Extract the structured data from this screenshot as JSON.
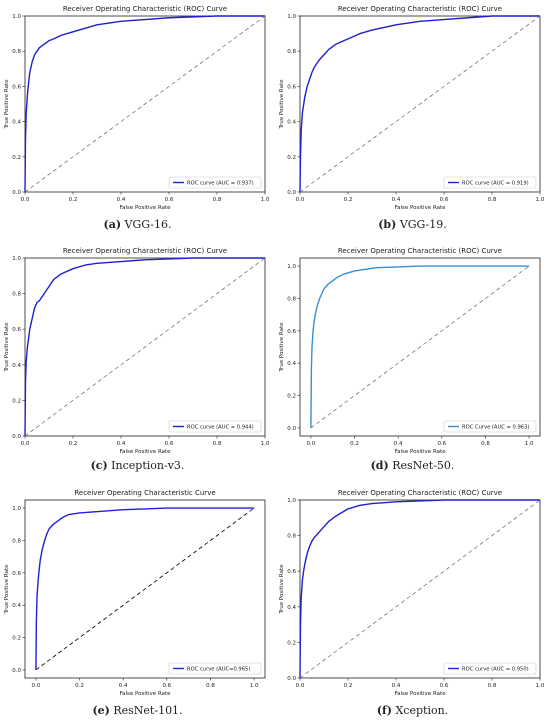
{
  "chart_data": [
    {
      "type": "line",
      "title": "Receiver Operating Characteristic (ROC) Curve",
      "xlabel": "False Positive Rate",
      "ylabel": "True Positive Rate",
      "xlim": [
        0,
        1
      ],
      "ylim": [
        0,
        1
      ],
      "xticks": [
        "0.0",
        "0.2",
        "0.4",
        "0.6",
        "0.8",
        "1.0"
      ],
      "yticks": [
        "0.0",
        "0.2",
        "0.4",
        "0.6",
        "0.8",
        "1.0"
      ],
      "legend_position": "lower-right",
      "color": "#1f1fcf",
      "caption_letter": "(a)",
      "caption_text": " VGG-16.",
      "series": [
        {
          "name": "ROC curve (AUC = 0.937)",
          "x": [
            0,
            0.002,
            0.005,
            0.01,
            0.015,
            0.02,
            0.03,
            0.04,
            0.05,
            0.06,
            0.08,
            0.1,
            0.12,
            0.15,
            0.2,
            0.25,
            0.3,
            0.4,
            0.5,
            0.6,
            0.7,
            0.8,
            0.9,
            1.0
          ],
          "y": [
            0,
            0.3,
            0.45,
            0.55,
            0.62,
            0.68,
            0.74,
            0.78,
            0.8,
            0.82,
            0.84,
            0.86,
            0.87,
            0.89,
            0.91,
            0.93,
            0.95,
            0.97,
            0.98,
            0.99,
            0.995,
            1.0,
            1.0,
            1.0
          ]
        },
        {
          "name": "",
          "style": "dashed",
          "x": [
            0,
            1
          ],
          "y": [
            0,
            1
          ]
        }
      ]
    },
    {
      "type": "line",
      "title": "Receiver Operating Characteristic (ROC) Curve",
      "xlabel": "False Positive Rate",
      "ylabel": "True Positive Rate",
      "xlim": [
        0,
        1
      ],
      "ylim": [
        0,
        1
      ],
      "xticks": [
        "0.0",
        "0.2",
        "0.4",
        "0.6",
        "0.8",
        "1.0"
      ],
      "yticks": [
        "0.0",
        "0.2",
        "0.4",
        "0.6",
        "0.8",
        "1.0"
      ],
      "legend_position": "lower-right",
      "color": "#1f1fcf",
      "caption_letter": "(b)",
      "caption_text": " VGG-19.",
      "series": [
        {
          "name": "ROC curve (AUC = 0.919)",
          "x": [
            0,
            0.002,
            0.005,
            0.01,
            0.02,
            0.03,
            0.04,
            0.05,
            0.06,
            0.08,
            0.1,
            0.12,
            0.15,
            0.2,
            0.25,
            0.3,
            0.4,
            0.5,
            0.6,
            0.7,
            0.8,
            0.9,
            1.0
          ],
          "y": [
            0,
            0.2,
            0.35,
            0.45,
            0.54,
            0.6,
            0.64,
            0.68,
            0.71,
            0.75,
            0.78,
            0.81,
            0.84,
            0.87,
            0.9,
            0.92,
            0.95,
            0.97,
            0.98,
            0.99,
            1.0,
            1.0,
            1.0
          ]
        },
        {
          "name": "",
          "style": "dashed",
          "x": [
            0,
            1
          ],
          "y": [
            0,
            1
          ]
        }
      ]
    },
    {
      "type": "line",
      "title": "Receiver Operating Characteristic (ROC) Curve",
      "xlabel": "False Positive Rate",
      "ylabel": "True Positive Rate",
      "xlim": [
        0,
        1
      ],
      "ylim": [
        0,
        1
      ],
      "xticks": [
        "0.0",
        "0.2",
        "0.4",
        "0.6",
        "0.8",
        "1.0"
      ],
      "yticks": [
        "0.0",
        "0.2",
        "0.4",
        "0.6",
        "0.8",
        "1.0"
      ],
      "legend_position": "lower-right",
      "color": "#1f1fcf",
      "caption_letter": "(c)",
      "caption_text": " Inception-v3.",
      "series": [
        {
          "name": "ROC curve (AUC = 0.944)",
          "x": [
            0,
            0.002,
            0.005,
            0.01,
            0.015,
            0.02,
            0.03,
            0.04,
            0.05,
            0.06,
            0.08,
            0.1,
            0.12,
            0.15,
            0.2,
            0.25,
            0.3,
            0.4,
            0.5,
            0.6,
            0.7,
            0.8,
            0.9,
            1.0
          ],
          "y": [
            0,
            0.3,
            0.42,
            0.5,
            0.55,
            0.6,
            0.66,
            0.72,
            0.75,
            0.76,
            0.8,
            0.84,
            0.88,
            0.91,
            0.94,
            0.96,
            0.97,
            0.98,
            0.99,
            0.995,
            1.0,
            1.0,
            1.0,
            1.0
          ]
        },
        {
          "name": "",
          "style": "dashed",
          "x": [
            0,
            1
          ],
          "y": [
            0,
            1
          ]
        }
      ]
    },
    {
      "type": "line",
      "title": "Receiver Operating Characteristic (ROC) Curve",
      "xlabel": "False Positive Rate",
      "ylabel": "True Positive Rate",
      "xlim": [
        -0.05,
        1.05
      ],
      "ylim": [
        -0.05,
        1.05
      ],
      "xticks": [
        "0.0",
        "0.2",
        "0.4",
        "0.6",
        "0.8",
        "1.0"
      ],
      "yticks": [
        "0.0",
        "0.2",
        "0.4",
        "0.6",
        "0.8",
        "1.0"
      ],
      "legend_position": "lower-right",
      "color": "#3a8fd0",
      "caption_letter": "(d)",
      "caption_text": " ResNet-50.",
      "series": [
        {
          "name": "ROC Curve (AUC = 0.963)",
          "x": [
            0,
            0.002,
            0.005,
            0.01,
            0.015,
            0.02,
            0.03,
            0.04,
            0.05,
            0.06,
            0.08,
            0.1,
            0.12,
            0.15,
            0.2,
            0.25,
            0.3,
            0.4,
            0.5,
            0.6,
            1.0
          ],
          "y": [
            0,
            0.35,
            0.5,
            0.6,
            0.66,
            0.7,
            0.76,
            0.8,
            0.83,
            0.86,
            0.89,
            0.91,
            0.93,
            0.95,
            0.97,
            0.98,
            0.99,
            0.995,
            1.0,
            1.0,
            1.0
          ]
        },
        {
          "name": "",
          "style": "dashed",
          "x": [
            0,
            1
          ],
          "y": [
            0,
            1
          ]
        }
      ]
    },
    {
      "type": "line",
      "title": "Receiver Operating Characteristic Curve",
      "xlabel": "False Positive Rate",
      "ylabel": "True Positive Rate",
      "xlim": [
        -0.05,
        1.05
      ],
      "ylim": [
        -0.05,
        1.05
      ],
      "xticks": [
        "0.0",
        "0.2",
        "0.4",
        "0.6",
        "0.8",
        "1.0"
      ],
      "yticks": [
        "0.0",
        "0.2",
        "0.4",
        "0.6",
        "0.8",
        "1.0"
      ],
      "legend_position": "lower-right",
      "color": "#2020e0",
      "caption_letter": "(e)",
      "caption_text": " ResNet-101.",
      "series": [
        {
          "name": "ROC curve (AUC=0.965)",
          "x": [
            0,
            0.002,
            0.005,
            0.01,
            0.015,
            0.02,
            0.03,
            0.04,
            0.05,
            0.06,
            0.08,
            0.1,
            0.12,
            0.15,
            0.2,
            0.3,
            0.4,
            0.5,
            0.6,
            0.8,
            1.0
          ],
          "y": [
            0,
            0.3,
            0.45,
            0.55,
            0.62,
            0.68,
            0.75,
            0.8,
            0.84,
            0.87,
            0.9,
            0.92,
            0.94,
            0.96,
            0.97,
            0.98,
            0.99,
            0.995,
            1.0,
            1.0,
            1.0
          ]
        },
        {
          "name": "",
          "style": "dashed",
          "x": [
            0,
            1
          ],
          "y": [
            0,
            1
          ]
        }
      ]
    },
    {
      "type": "line",
      "title": "Receiver Operating Characteristic (ROC) Curve",
      "xlabel": "False Positive Rate",
      "ylabel": "True Positive Rate",
      "xlim": [
        0,
        1
      ],
      "ylim": [
        0,
        1
      ],
      "xticks": [
        "0.0",
        "0.2",
        "0.4",
        "0.6",
        "0.8",
        "1.0"
      ],
      "yticks": [
        "0.0",
        "0.2",
        "0.4",
        "0.6",
        "0.8",
        "1.0"
      ],
      "legend_position": "lower-right",
      "color": "#1f1fcf",
      "caption_letter": "(f)",
      "caption_text": " Xception.",
      "series": [
        {
          "name": "ROC curve (AUC = 0.950)",
          "x": [
            0,
            0.002,
            0.005,
            0.01,
            0.015,
            0.02,
            0.03,
            0.04,
            0.05,
            0.06,
            0.08,
            0.1,
            0.12,
            0.15,
            0.2,
            0.25,
            0.3,
            0.4,
            0.5,
            0.6,
            0.7,
            0.8,
            1.0
          ],
          "y": [
            0,
            0.3,
            0.45,
            0.55,
            0.6,
            0.64,
            0.7,
            0.74,
            0.77,
            0.79,
            0.82,
            0.85,
            0.88,
            0.91,
            0.95,
            0.97,
            0.98,
            0.99,
            0.995,
            1.0,
            1.0,
            1.0,
            1.0
          ]
        },
        {
          "name": "",
          "style": "dashed",
          "x": [
            0,
            1
          ],
          "y": [
            0,
            1
          ]
        }
      ]
    }
  ]
}
